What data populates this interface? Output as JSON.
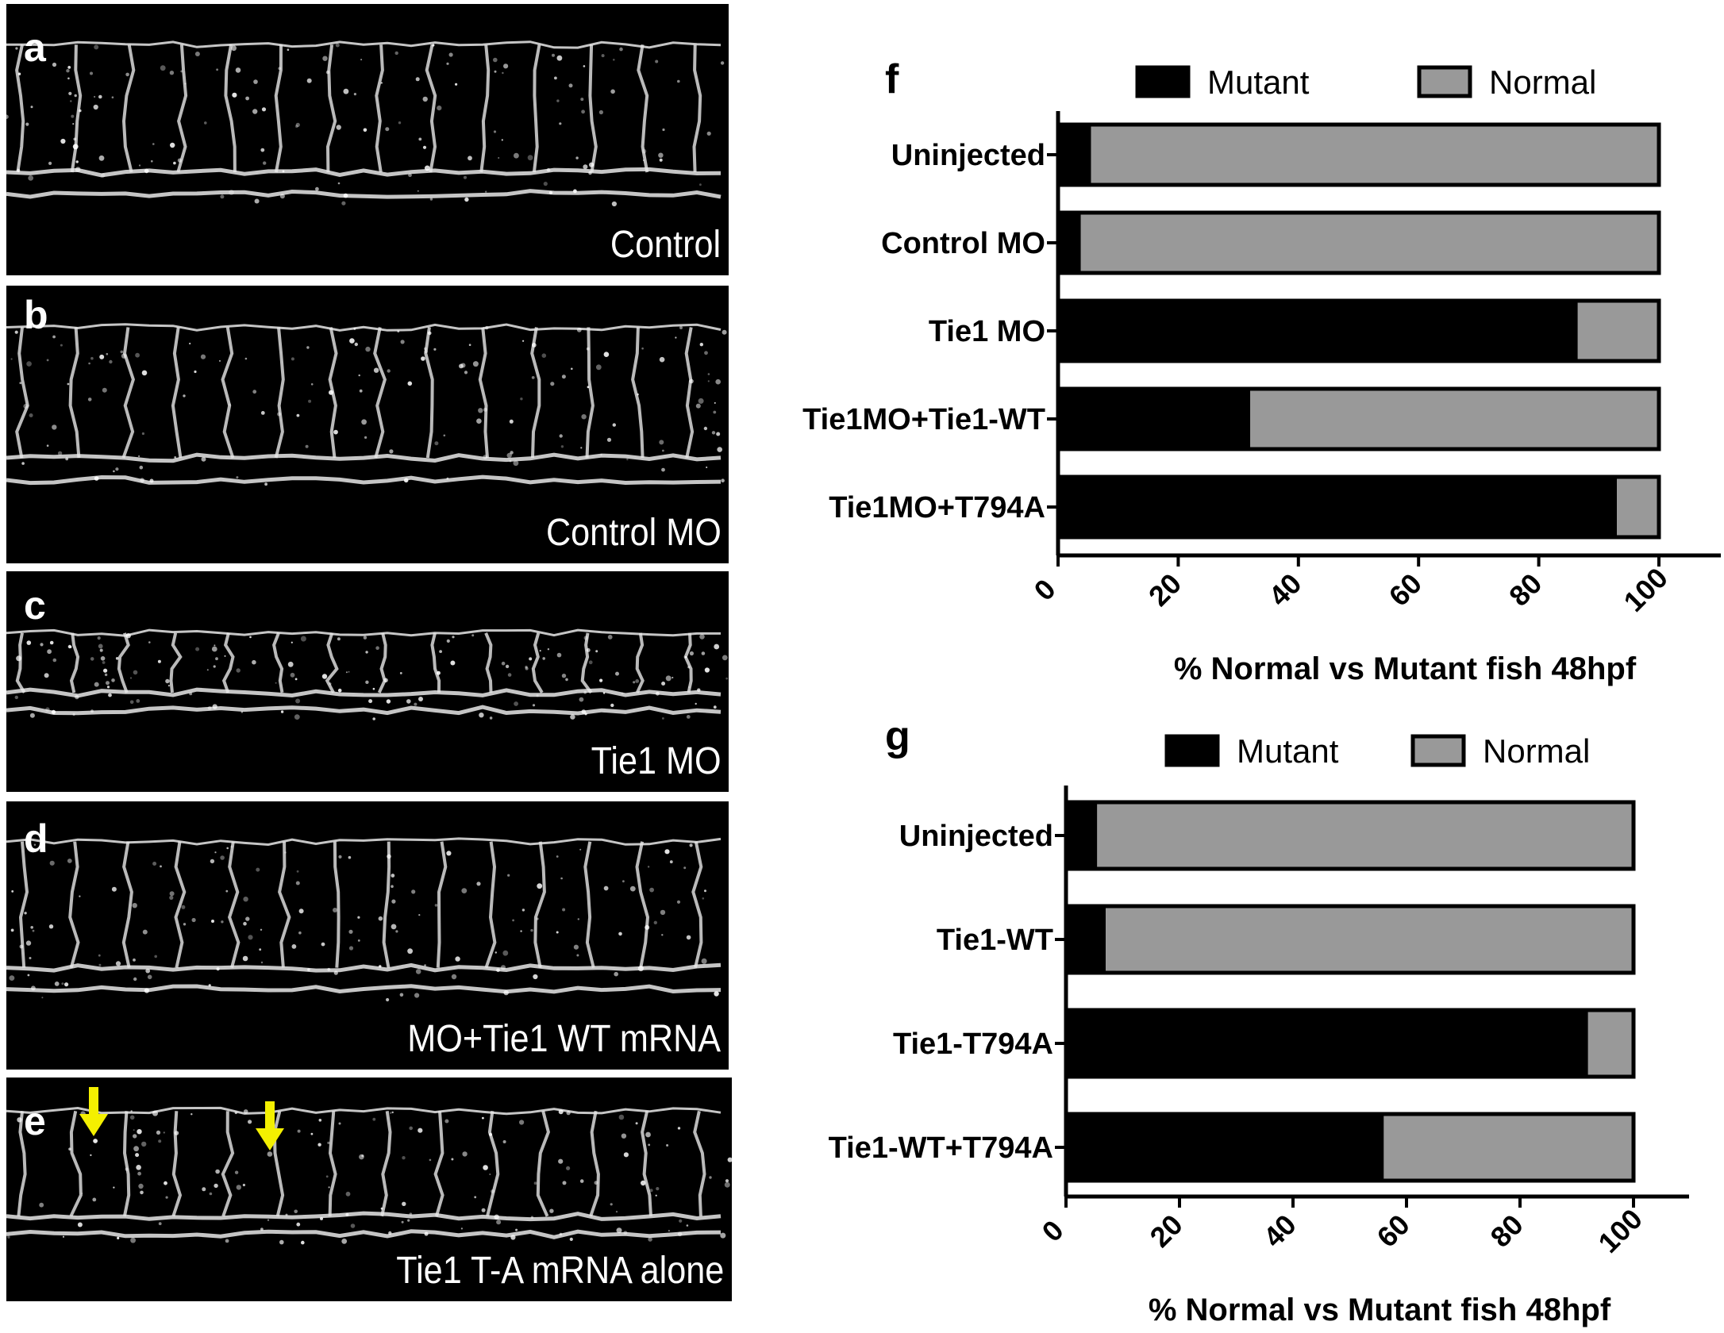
{
  "panels": [
    {
      "letter": "a",
      "caption": "Control"
    },
    {
      "letter": "b",
      "caption": "Control MO"
    },
    {
      "letter": "c",
      "caption": "Tie1 MO"
    },
    {
      "letter": "d",
      "caption": "MO+Tie1 WT mRNA"
    },
    {
      "letter": "e",
      "caption": "Tie1 T-A mRNA alone"
    }
  ],
  "arrow_color": "#f4f000",
  "chart_data": [
    {
      "panel_letter": "f",
      "type": "bar",
      "orientation": "horizontal",
      "stacked": true,
      "categories": [
        "Uninjected",
        "Control MO",
        "Tie1 MO",
        "Tie1MO+Tie1-WT",
        "Tie1MO+T794A"
      ],
      "series": [
        {
          "name": "Mutant",
          "color": "#000000",
          "values": [
            5.5,
            3.8,
            86.5,
            32,
            93
          ]
        },
        {
          "name": "Normal",
          "color": "#999999",
          "values": [
            94.5,
            96.2,
            13.5,
            68,
            7
          ]
        }
      ],
      "xlabel": "% Normal vs Mutant fish 48hpf",
      "ylabel": "",
      "xlim": [
        0,
        100
      ],
      "xticks": [
        "0",
        "20",
        "40",
        "60",
        "80",
        "100"
      ],
      "legend": "top"
    },
    {
      "panel_letter": "g",
      "type": "bar",
      "orientation": "horizontal",
      "stacked": true,
      "categories": [
        "Uninjected",
        "Tie1-WT",
        "Tie1-T794A",
        "Tie1-WT+T794A"
      ],
      "series": [
        {
          "name": "Mutant",
          "color": "#000000",
          "values": [
            5.5,
            7,
            92,
            56
          ]
        },
        {
          "name": "Normal",
          "color": "#999999",
          "values": [
            94.5,
            93,
            8,
            44
          ]
        }
      ],
      "xlabel": "% Normal vs Mutant fish 48hpf",
      "ylabel": "",
      "xlim": [
        0,
        100
      ],
      "xticks": [
        "0",
        "20",
        "40",
        "60",
        "80",
        "100"
      ],
      "legend": "top"
    }
  ]
}
